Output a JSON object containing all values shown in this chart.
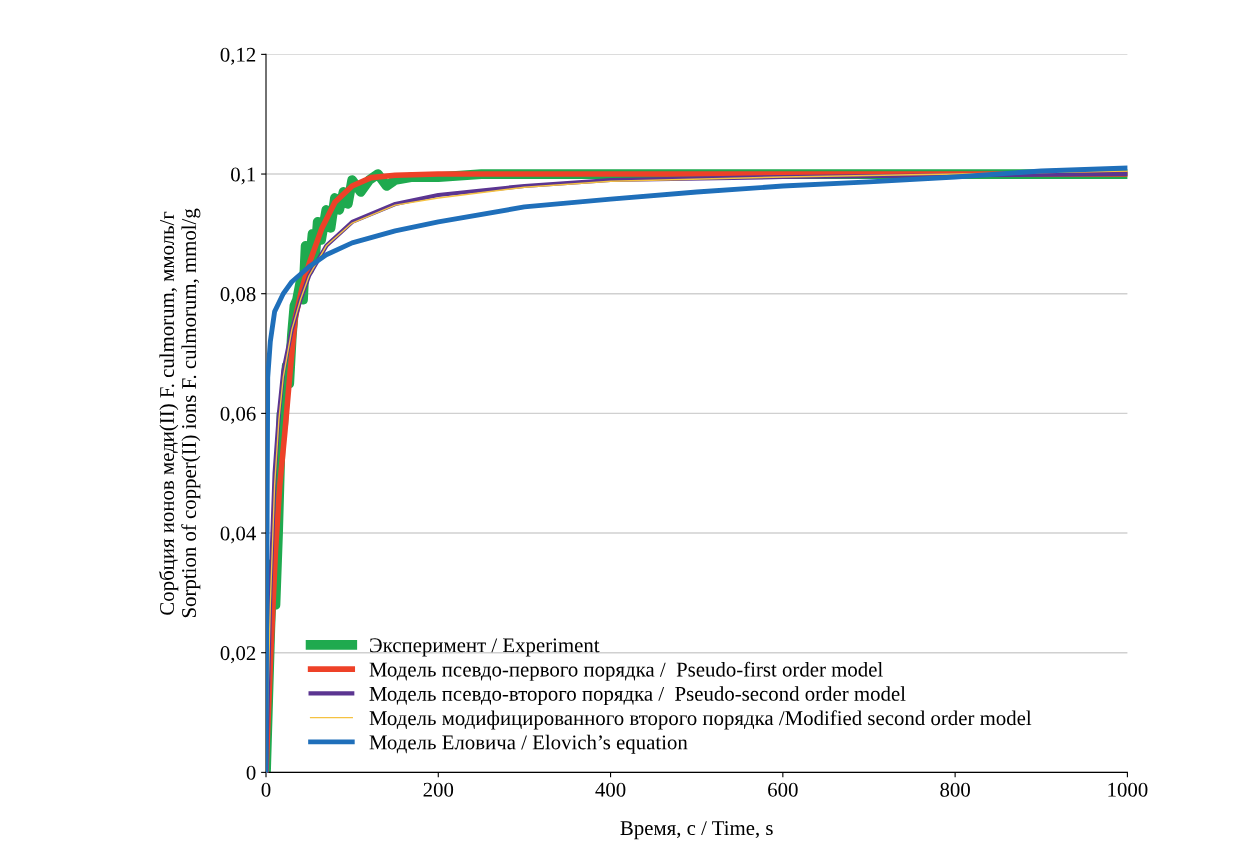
{
  "chart_data": {
    "type": "line",
    "xlabel": "Время, с / Time, s",
    "ylabel": "Сорбция ионов меди(II) F. culmorum, ммоль/г\nSorption of copper(II) ions F. culmorum, mmol/g",
    "xlim": [
      0,
      1000
    ],
    "xticks": [
      0,
      200,
      400,
      600,
      800,
      1000
    ],
    "ylim": [
      0,
      0.12
    ],
    "yticks": [
      0,
      {
        "value": 0.02,
        "label": "0,02"
      },
      {
        "value": 0.04,
        "label": "0,04"
      },
      {
        "value": 0.06,
        "label": "0,06"
      },
      {
        "value": 0.08,
        "label": "0,08"
      },
      {
        "value": 0.1,
        "label": "0,1"
      },
      {
        "value": 0.12,
        "label": "0,12"
      }
    ],
    "grid": "y",
    "legend": "bottom left",
    "marker": "none",
    "line_style": "solid",
    "series": [
      {
        "name": "Эксперимент / Experiment",
        "color": "#1faa4f",
        "x": [
          0,
          5,
          8,
          11,
          14,
          18,
          20,
          24,
          27,
          30,
          33,
          36,
          40,
          43,
          46,
          50,
          54,
          57,
          60,
          64,
          70,
          75,
          80,
          85,
          90,
          95,
          100,
          110,
          120,
          130,
          140,
          150,
          170,
          200,
          250,
          300,
          1000
        ],
        "values": [
          0,
          0.024,
          0.035,
          0.028,
          0.04,
          0.06,
          0.058,
          0.068,
          0.065,
          0.073,
          0.078,
          0.079,
          0.082,
          0.079,
          0.088,
          0.084,
          0.09,
          0.086,
          0.092,
          0.089,
          0.094,
          0.091,
          0.096,
          0.094,
          0.097,
          0.095,
          0.099,
          0.097,
          0.099,
          0.1,
          0.098,
          0.099,
          0.0995,
          0.0995,
          0.1,
          0.1,
          0.1
        ]
      },
      {
        "name": "Модель псевдо-первого порядка /  Pseudo-first order model",
        "color": "#ee4128",
        "x": [
          0,
          5,
          11,
          16,
          22,
          28,
          34,
          42,
          50,
          65,
          80,
          100,
          122,
          150,
          200,
          1000
        ],
        "values": [
          0,
          0.018,
          0.037,
          0.048,
          0.057,
          0.067,
          0.076,
          0.081,
          0.085,
          0.091,
          0.0953,
          0.098,
          0.0994,
          0.0998,
          0.1,
          0.1
        ]
      },
      {
        "name": "Модель псевдо-второго порядка /  Pseudo-second order model",
        "color": "#5b3591",
        "x": [
          0,
          5,
          10,
          15,
          20,
          30,
          40,
          50,
          70,
          100,
          150,
          200,
          300,
          400,
          600,
          800,
          1000
        ],
        "values": [
          0,
          0.03,
          0.05,
          0.06,
          0.067,
          0.074,
          0.079,
          0.083,
          0.088,
          0.092,
          0.095,
          0.0965,
          0.098,
          0.099,
          0.0995,
          0.0998,
          0.1
        ]
      },
      {
        "name": "Модель модифицированного второго порядка /Modified second order model",
        "color": "#f5c242",
        "x": [
          0,
          5,
          10,
          15,
          20,
          30,
          40,
          50,
          70,
          100,
          150,
          200,
          300,
          400,
          600,
          800,
          1000
        ],
        "values": [
          0,
          0.028,
          0.048,
          0.059,
          0.066,
          0.074,
          0.079,
          0.083,
          0.088,
          0.0918,
          0.0948,
          0.096,
          0.0978,
          0.0988,
          0.0995,
          0.1,
          0.1005
        ]
      },
      {
        "name": "Модель Еловича / Elovich’s equation",
        "color": "#1f6fba",
        "x": [
          0,
          2,
          5,
          10,
          20,
          30,
          50,
          70,
          100,
          150,
          200,
          300,
          400,
          500,
          600,
          700,
          800,
          900,
          1000
        ],
        "values": [
          0,
          0.066,
          0.072,
          0.077,
          0.08,
          0.082,
          0.0845,
          0.0865,
          0.0885,
          0.0905,
          0.092,
          0.0945,
          0.0958,
          0.097,
          0.098,
          0.0987,
          0.0995,
          0.1005,
          0.101
        ]
      }
    ]
  }
}
